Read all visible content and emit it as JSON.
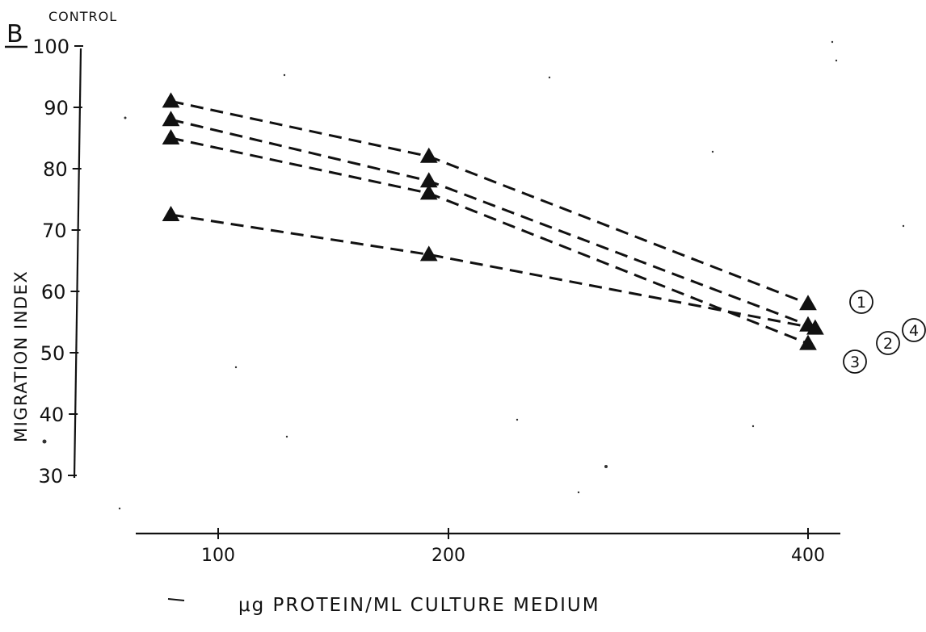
{
  "panel_label": "B",
  "control_label": "CONTROL",
  "chart_data": {
    "type": "line",
    "title": "",
    "xlabel": "μg PROTEIN/ML CULTURE MEDIUM",
    "ylabel": "MIGRATION INDEX",
    "x_ticks": [
      "100",
      "200",
      "400"
    ],
    "y_ticks": [
      "30",
      "40",
      "50",
      "60",
      "70",
      "80",
      "90",
      "100"
    ],
    "xlim": [
      75,
      412
    ],
    "ylim": [
      30,
      100
    ],
    "grid": false,
    "series": [
      {
        "name": "1",
        "x": [
          90,
          195,
          400
        ],
        "y": [
          91,
          82,
          58
        ]
      },
      {
        "name": "2",
        "x": [
          90,
          195,
          400
        ],
        "y": [
          88,
          78,
          54.5
        ]
      },
      {
        "name": "3",
        "x": [
          90,
          195,
          400
        ],
        "y": [
          85,
          76,
          51.5
        ]
      },
      {
        "name": "4",
        "x": [
          90,
          195,
          404
        ],
        "y": [
          72.5,
          66,
          54
        ]
      }
    ]
  }
}
